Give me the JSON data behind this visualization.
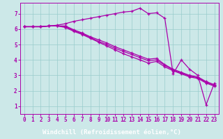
{
  "title": "",
  "xlabel": "Windchill (Refroidissement éolien,°C)",
  "ylabel": "",
  "bg_color": "#cce8e8",
  "line_color": "#aa00aa",
  "grid_color": "#99cccc",
  "xlabel_bg": "#880088",
  "xlabel_fg": "#ffffff",
  "xlim": [
    -0.5,
    23.5
  ],
  "ylim": [
    0.5,
    7.7
  ],
  "xticks": [
    0,
    1,
    2,
    3,
    4,
    5,
    6,
    7,
    8,
    9,
    10,
    11,
    12,
    13,
    14,
    15,
    16,
    17,
    18,
    19,
    20,
    21,
    22,
    23
  ],
  "yticks": [
    1,
    2,
    3,
    4,
    5,
    6,
    7
  ],
  "curves": [
    [
      6.15,
      6.15,
      6.15,
      6.2,
      6.25,
      6.35,
      6.5,
      6.6,
      6.7,
      6.8,
      6.9,
      7.0,
      7.1,
      7.15,
      7.35,
      7.0,
      7.05,
      6.7,
      3.1,
      4.0,
      3.4,
      3.0,
      1.1,
      2.5
    ],
    [
      6.15,
      6.15,
      6.15,
      6.2,
      6.2,
      6.2,
      5.95,
      5.75,
      5.5,
      5.3,
      5.1,
      4.85,
      4.65,
      4.45,
      4.25,
      4.05,
      4.1,
      3.7,
      3.4,
      3.2,
      3.0,
      2.9,
      2.6,
      2.4
    ],
    [
      6.15,
      6.15,
      6.15,
      6.2,
      6.2,
      6.15,
      5.9,
      5.7,
      5.45,
      5.2,
      5.0,
      4.75,
      4.55,
      4.35,
      4.15,
      3.95,
      4.0,
      3.65,
      3.35,
      3.15,
      2.95,
      2.85,
      2.55,
      2.35
    ],
    [
      6.15,
      6.15,
      6.15,
      6.2,
      6.2,
      6.1,
      5.85,
      5.65,
      5.4,
      5.15,
      4.9,
      4.65,
      4.4,
      4.2,
      4.0,
      3.8,
      3.9,
      3.55,
      3.3,
      3.1,
      2.9,
      2.8,
      2.5,
      2.3
    ]
  ]
}
